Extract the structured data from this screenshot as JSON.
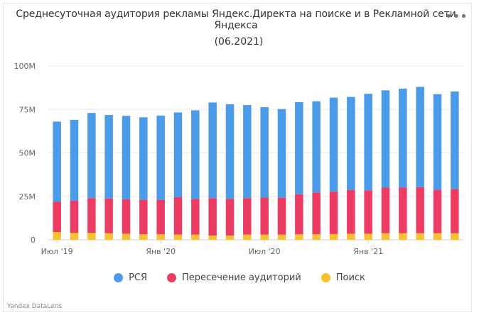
{
  "header": {
    "title": "Среднесуточная аудитория рекламы Яндекс.Директа на поиске и в Рекламной сети Яндекса",
    "subtitle": "(06.2021)",
    "menu_glyph": "•••"
  },
  "footer": {
    "watermark": "Yandex DataLens"
  },
  "legend_items": [
    {
      "label": "РСЯ",
      "color": "#4c9be8"
    },
    {
      "label": "Пересечение аудиторий",
      "color": "#ed3c64"
    },
    {
      "label": "Поиск",
      "color": "#fbc02d"
    }
  ],
  "chart_data": {
    "type": "bar",
    "stacked": true,
    "categories": [
      "2019-07",
      "2019-08",
      "2019-09",
      "2019-10",
      "2019-11",
      "2019-12",
      "2020-01",
      "2020-02",
      "2020-03",
      "2020-04",
      "2020-05",
      "2020-06",
      "2020-07",
      "2020-08",
      "2020-09",
      "2020-10",
      "2020-11",
      "2020-12",
      "2021-01",
      "2021-02",
      "2021-03",
      "2021-04",
      "2021-05",
      "2021-06"
    ],
    "x_tick_labels": [
      {
        "index": 0,
        "label": "Июл '19"
      },
      {
        "index": 6,
        "label": "Янв '20"
      },
      {
        "index": 12,
        "label": "Июл '20"
      },
      {
        "index": 18,
        "label": "Янв '21"
      }
    ],
    "y_tick_labels": [
      "0",
      "25M",
      "50M",
      "75M",
      "100M"
    ],
    "y_ticks": [
      0,
      25,
      50,
      75,
      100
    ],
    "ylim": [
      0,
      100
    ],
    "unit": "M",
    "grid": true,
    "legend_position": "bottom",
    "series": [
      {
        "name": "Поиск",
        "color": "#fbc02d",
        "values": [
          4.5,
          4.0,
          4.0,
          3.8,
          3.5,
          3.2,
          3.2,
          3.0,
          3.0,
          2.5,
          2.5,
          3.0,
          3.0,
          3.0,
          3.2,
          3.2,
          3.3,
          3.5,
          3.5,
          3.8,
          3.8,
          3.8,
          3.8,
          3.8
        ]
      },
      {
        "name": "Пересечение аудиторий",
        "color": "#ed3c64",
        "values": [
          17.5,
          18.5,
          20.0,
          20.0,
          19.8,
          19.8,
          19.8,
          21.5,
          20.5,
          21.5,
          21.0,
          21.0,
          21.3,
          21.2,
          23.0,
          24.0,
          24.5,
          25.2,
          25.0,
          26.2,
          26.2,
          26.5,
          25.0,
          25.5
        ]
      },
      {
        "name": "РСЯ",
        "color": "#4c9be8",
        "values": [
          46.0,
          46.5,
          49.0,
          48.0,
          48.0,
          47.5,
          48.5,
          48.8,
          51.0,
          55.0,
          54.5,
          53.5,
          52.0,
          51.0,
          53.0,
          52.5,
          54.0,
          53.5,
          55.5,
          56.0,
          57.0,
          57.7,
          55.0,
          56.0
        ]
      }
    ]
  }
}
